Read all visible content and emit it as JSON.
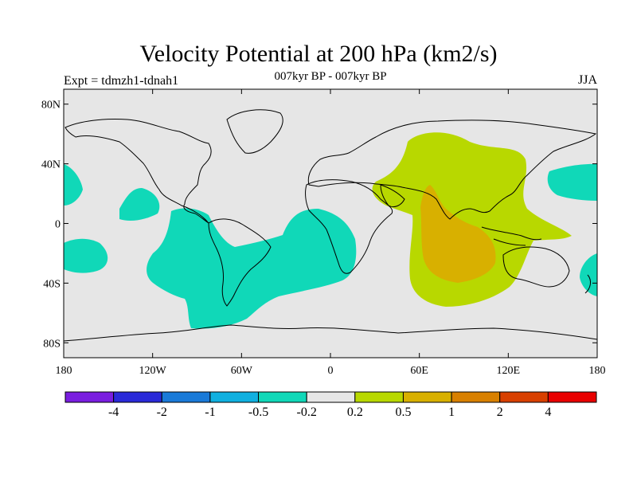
{
  "title": "Velocity Potential at 200 hPa (km2/s)",
  "subtitle": "007kyr BP - 007kyr BP",
  "left_label": "Expt = tdmzh1-tdnah1",
  "right_label": "JJA",
  "map": {
    "lat_ticks": [
      "80N",
      "40N",
      "0",
      "40S",
      "80S"
    ],
    "lon_ticks": [
      "180",
      "120W",
      "60W",
      "0",
      "60E",
      "120E",
      "180"
    ],
    "background_color": "#e6e6e6"
  },
  "colorbar": {
    "colors": [
      "#7a1ee0",
      "#2a2ad8",
      "#1a7ad8",
      "#10b0e0",
      "#10d8b8",
      "#e6e6e6",
      "#b8d800",
      "#d8b000",
      "#d88000",
      "#d84000",
      "#e80000"
    ],
    "labels": [
      "-4",
      "-2",
      "-1",
      "-0.5",
      "-0.2",
      "0.2",
      "0.5",
      "1",
      "2",
      "4"
    ]
  },
  "regions": [
    {
      "name": "positive-indian-ocean-region",
      "level": "0.2 to 0.5",
      "color": "#b8d800"
    },
    {
      "name": "positive-indian-ocean-core",
      "level": "0.5 to 1",
      "color": "#d8b000"
    },
    {
      "name": "negative-south-atlantic-region",
      "level": "-0.5 to -0.2",
      "color": "#10d8b8"
    },
    {
      "name": "negative-east-pacific-region",
      "level": "-0.5 to -0.2",
      "color": "#10d8b8"
    },
    {
      "name": "negative-west-pacific-region",
      "level": "-0.5 to -0.2",
      "color": "#10d8b8"
    }
  ]
}
